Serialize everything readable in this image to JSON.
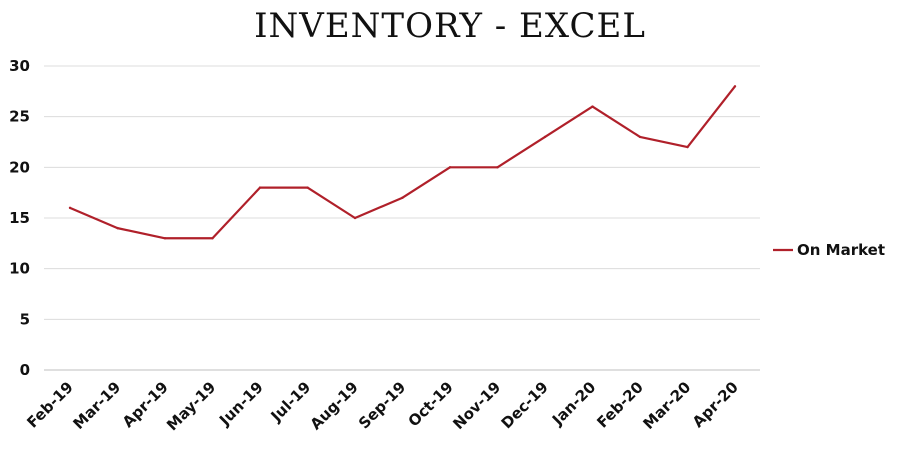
{
  "chart_data": {
    "type": "line",
    "title": "INVENTORY - EXCEL",
    "xlabel": "",
    "ylabel": "",
    "categories": [
      "Feb-19",
      "Mar-19",
      "Apr-19",
      "May-19",
      "Jun-19",
      "Jul-19",
      "Aug-19",
      "Sep-19",
      "Oct-19",
      "Nov-19",
      "Dec-19",
      "Jan-20",
      "Feb-20",
      "Mar-20",
      "Apr-20"
    ],
    "series": [
      {
        "name": "On Market",
        "values": [
          16,
          14,
          13,
          13,
          18,
          18,
          15,
          17,
          20,
          20,
          23,
          26,
          23,
          22,
          28
        ],
        "color": "#B0202A"
      }
    ],
    "ylim": [
      0,
      30
    ],
    "yticks": [
      0,
      5,
      10,
      15,
      20,
      25,
      30
    ],
    "grid": true,
    "legend": "right"
  }
}
